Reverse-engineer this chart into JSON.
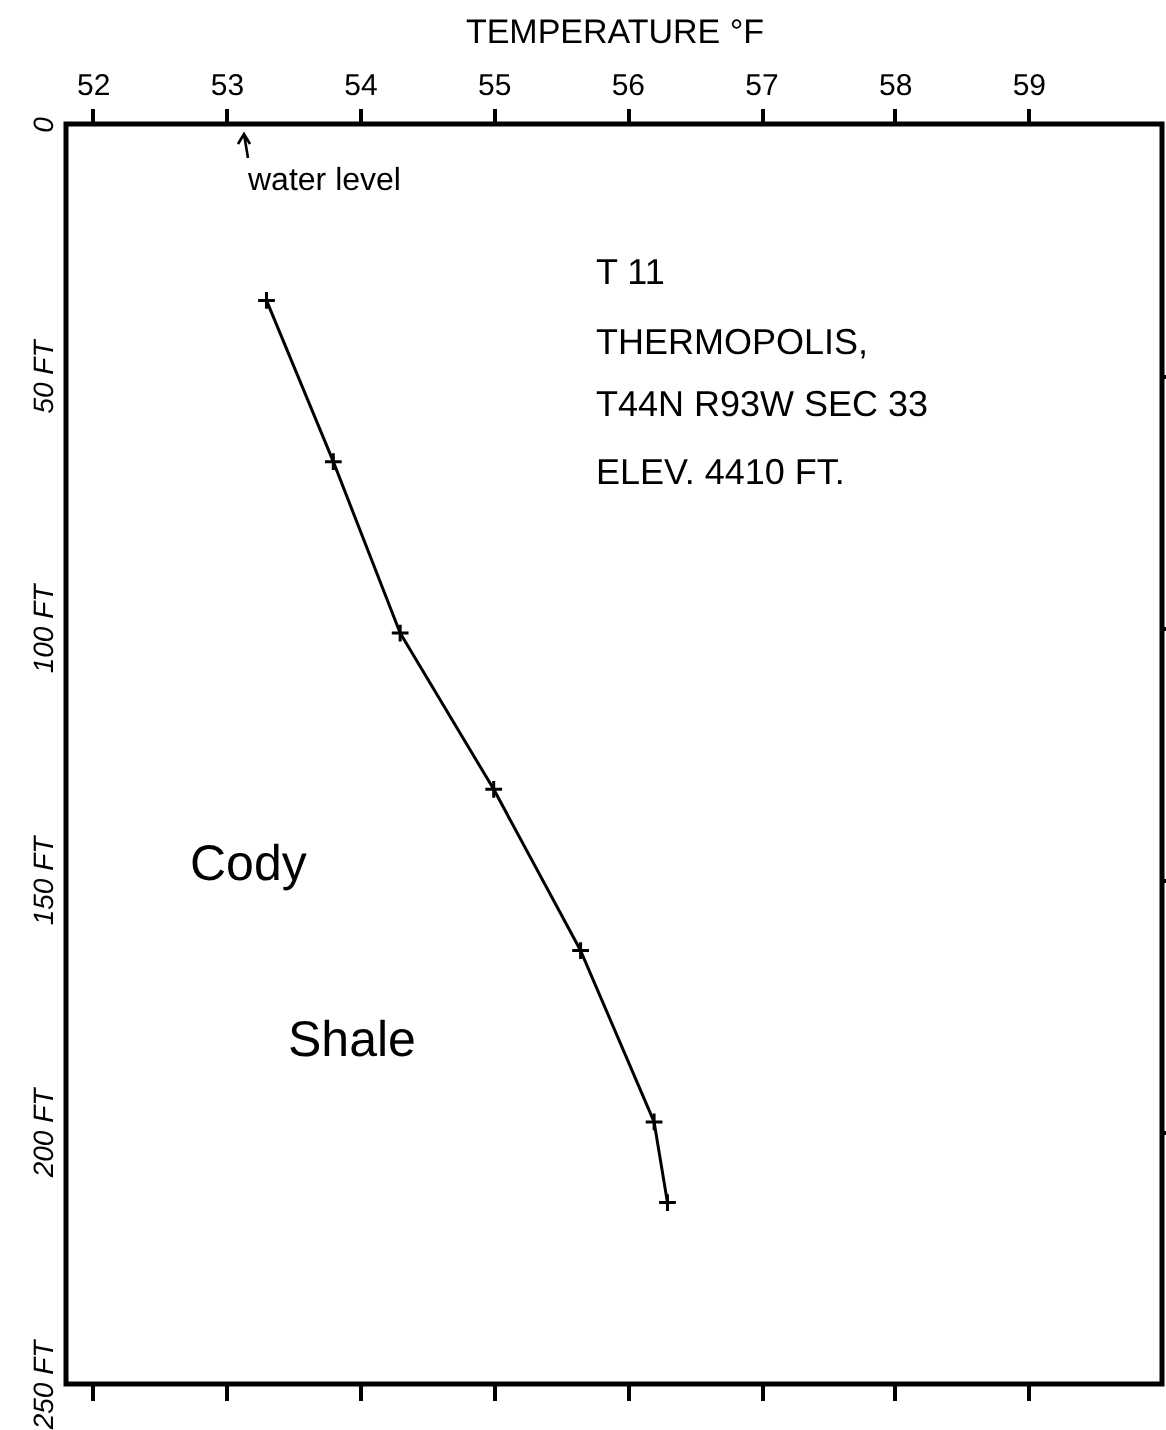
{
  "chart_data": {
    "type": "line",
    "xlabel": "TEMPERATURE °F",
    "x": [
      53.3,
      53.8,
      54.3,
      55.0,
      55.65,
      56.2,
      56.3
    ],
    "series": [
      {
        "color": "#000000",
        "values": [
          35,
          67,
          101,
          132,
          164,
          198,
          214
        ]
      }
    ],
    "xlim": [
      51.8,
      60
    ],
    "xticks": [
      52,
      53,
      54,
      55,
      56,
      57,
      58,
      59
    ],
    "ylim": [
      250,
      0
    ],
    "yticks": [
      {
        "value": 0,
        "label": "0"
      },
      {
        "value": 50,
        "label": "50 FT"
      },
      {
        "value": 100,
        "label": "100 FT"
      },
      {
        "value": 150,
        "label": "150 FT"
      },
      {
        "value": 200,
        "label": "200 FT"
      },
      {
        "value": 250,
        "label": "250 FT"
      }
    ],
    "marker": "cross",
    "line_style": "solid",
    "grid": false,
    "annotations": [
      "water level",
      "T 11",
      "THERMOPOLIS,",
      "T44N R93W SEC 33",
      "ELEV. 4410 FT.",
      "Cody",
      "Shale"
    ]
  }
}
